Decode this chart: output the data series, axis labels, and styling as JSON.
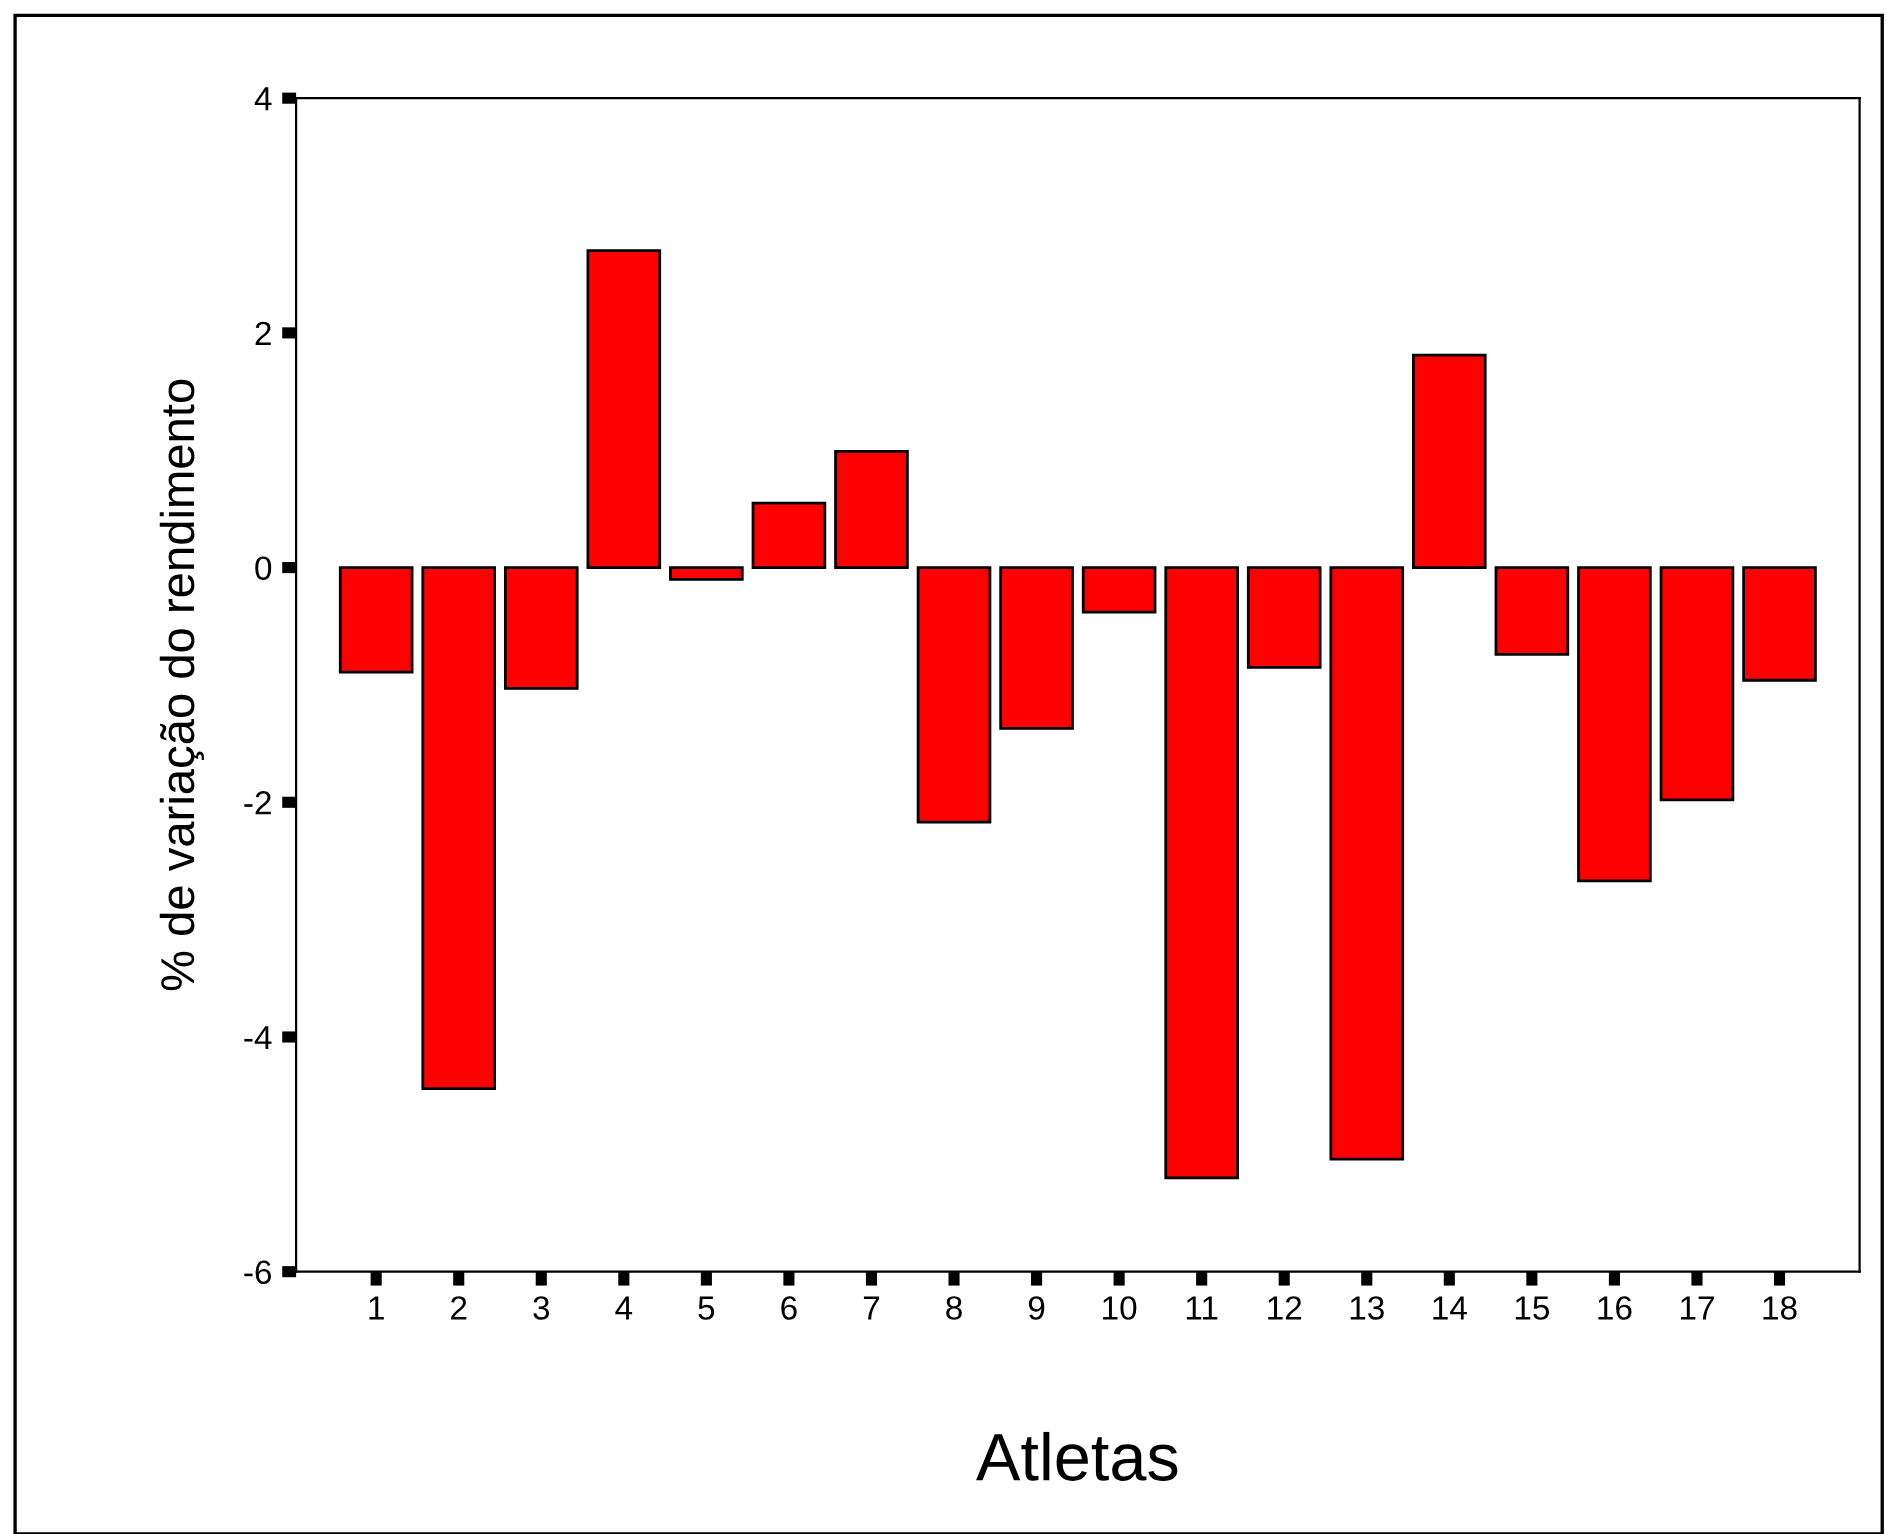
{
  "chart_data": {
    "type": "bar",
    "xlabel": "Atletas",
    "ylabel": "% de variação do rendimento",
    "categories": [
      "1",
      "2",
      "3",
      "4",
      "5",
      "6",
      "7",
      "8",
      "9",
      "10",
      "11",
      "12",
      "13",
      "14",
      "15",
      "16",
      "17",
      "18"
    ],
    "values": [
      -0.89,
      -4.44,
      -1.03,
      2.7,
      -0.1,
      0.55,
      0.99,
      -2.17,
      -1.37,
      -0.38,
      -5.2,
      -0.85,
      -5.04,
      1.81,
      -0.74,
      -2.67,
      -1.98,
      -0.96
    ],
    "color": "#ff0000",
    "ylim": [
      -6,
      4
    ],
    "yticks": [
      4,
      2,
      0,
      -2,
      -4,
      -6
    ],
    "grid": false,
    "legend": false
  }
}
